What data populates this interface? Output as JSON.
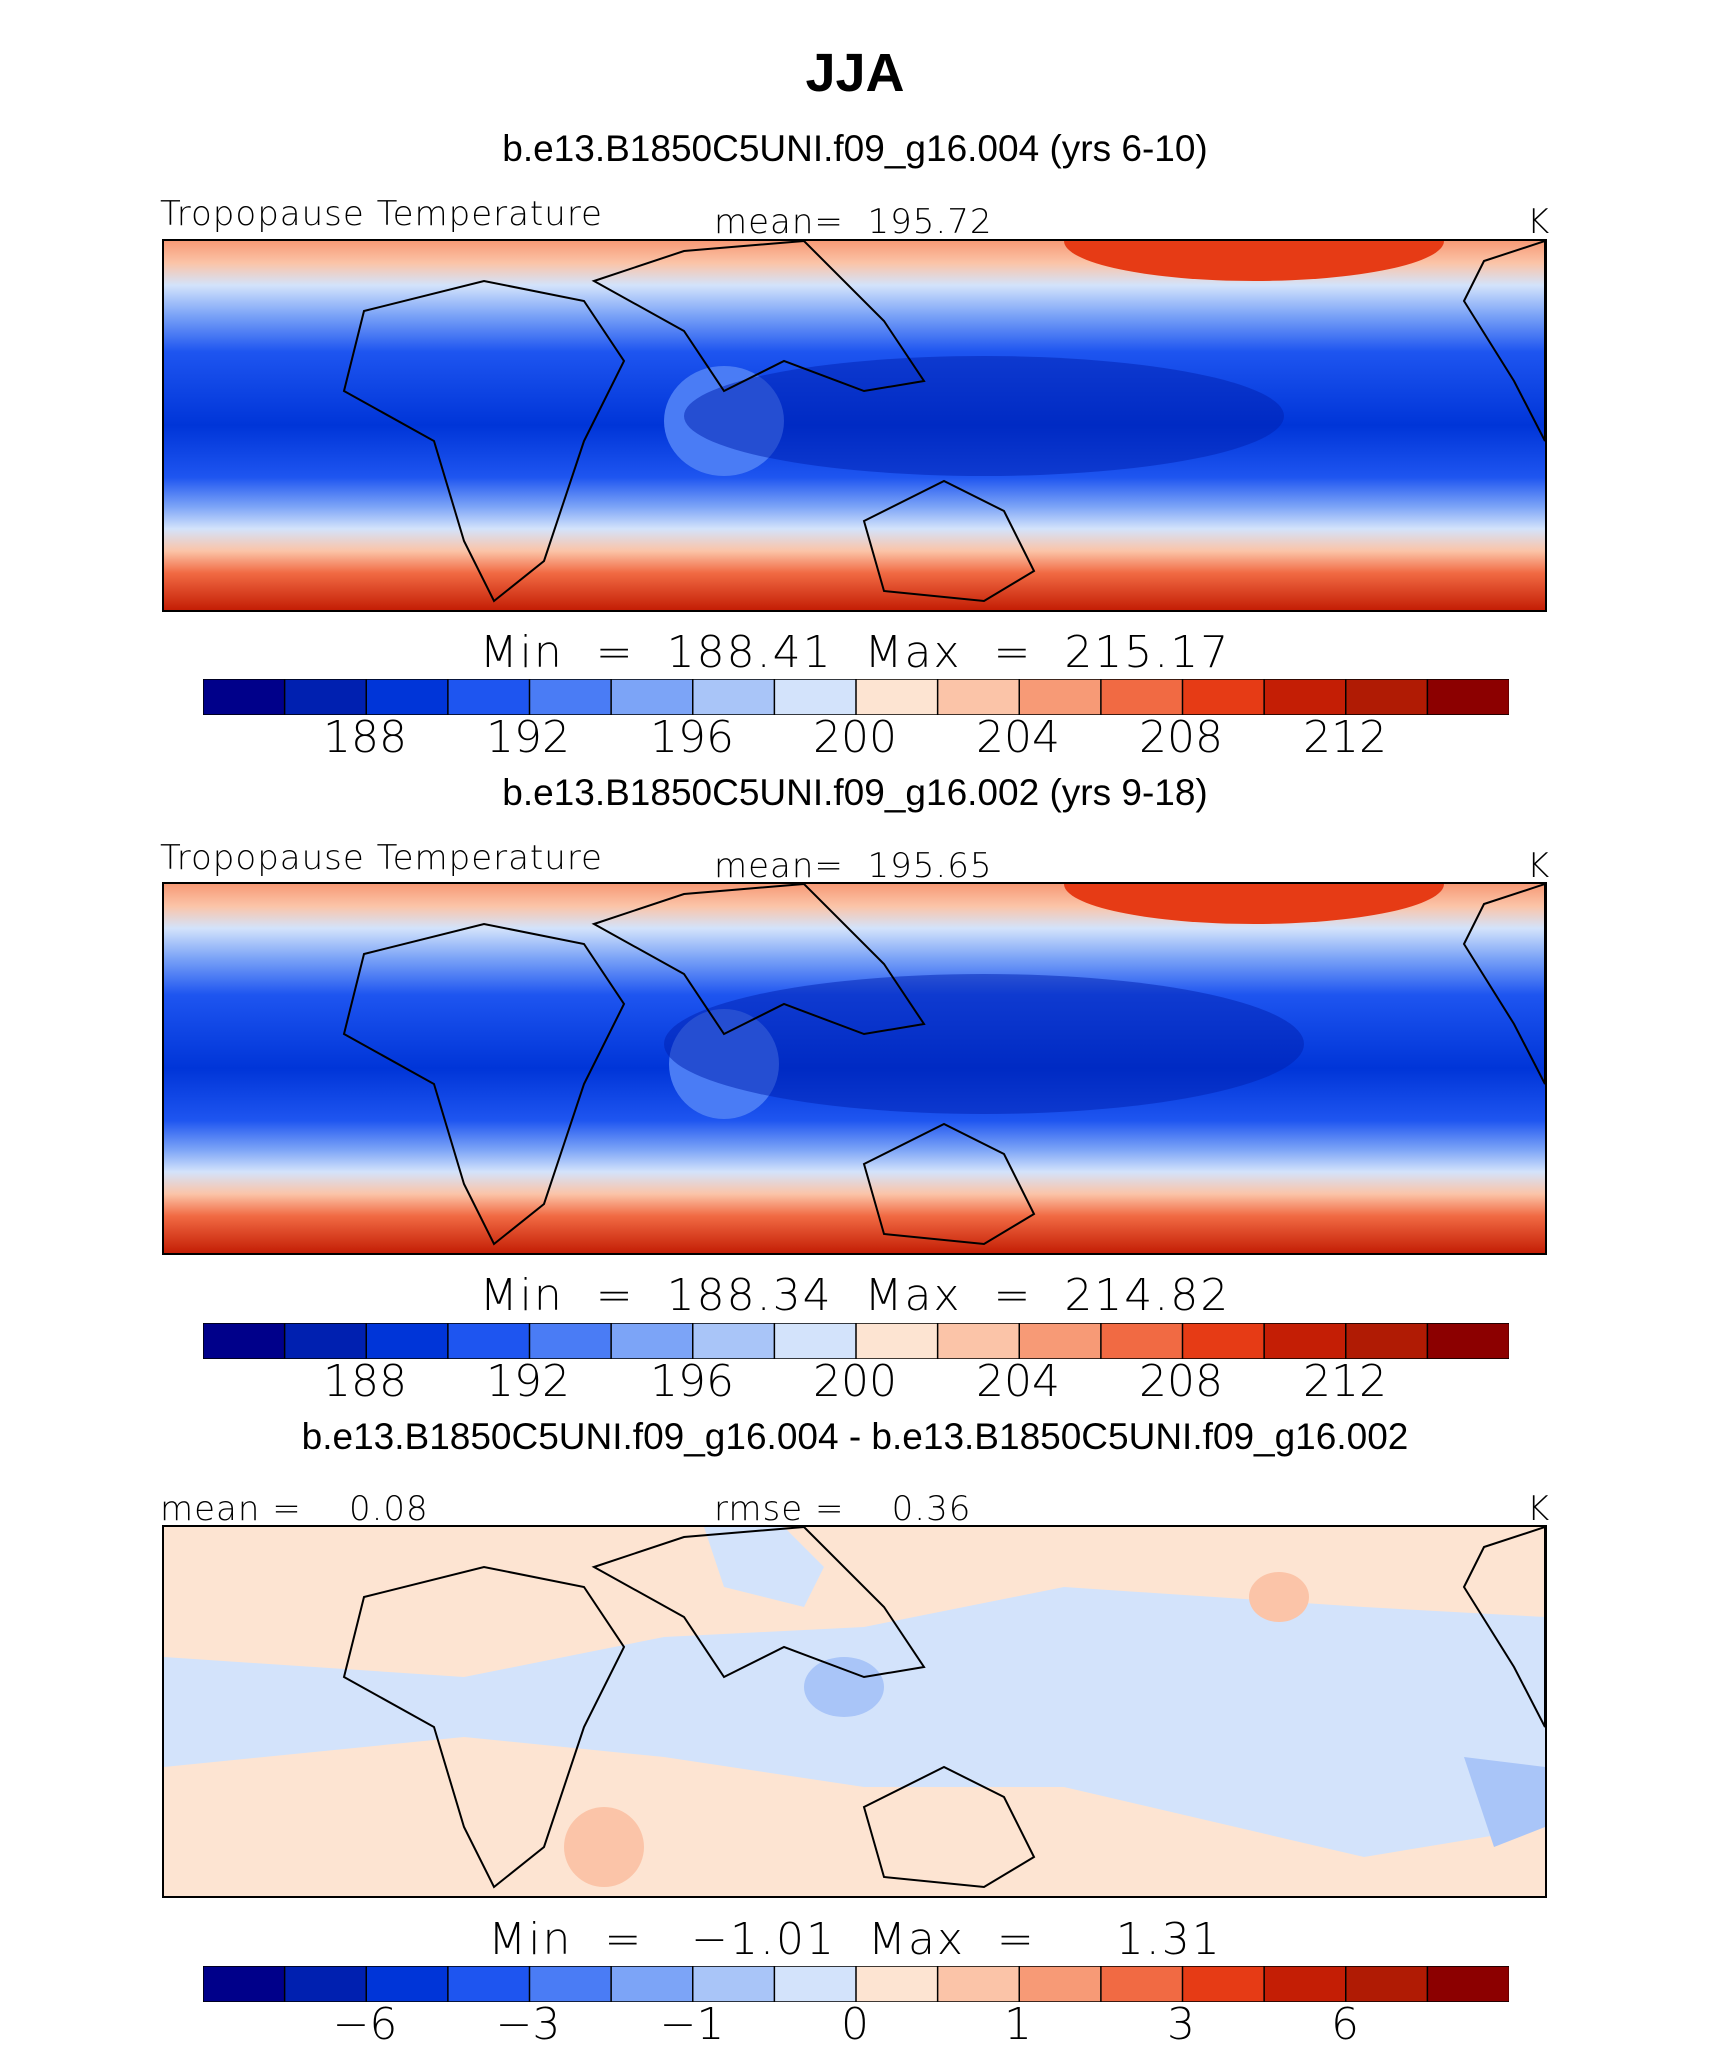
{
  "title": "JJA",
  "colors": [
    "#00008a",
    "#0020b0",
    "#0035d8",
    "#1e55f0",
    "#4a7cf5",
    "#7ca4f7",
    "#a9c5f8",
    "#d3e3fb",
    "#fde4d2",
    "#fbc4a8",
    "#f79a76",
    "#f16a43",
    "#e63b15",
    "#c41e05",
    "#b01b04",
    "#8c0000"
  ],
  "panels": [
    {
      "case_title": "b.e13.B1850C5UNI.f09_g16.004 (yrs 6-10)",
      "left_label": "Tropopause Temperature",
      "center_label": "mean=  195.72",
      "units": "K",
      "minmax": "Min  =  188.41  Max  =  215.17",
      "tick_labels": [
        "188",
        "192",
        "196",
        "200",
        "204",
        "208",
        "212"
      ]
    },
    {
      "case_title": "b.e13.B1850C5UNI.f09_g16.002 (yrs 9-18)",
      "left_label": "Tropopause Temperature",
      "center_label": "mean=  195.65",
      "units": "K",
      "minmax": "Min  =  188.34  Max  =  214.82",
      "tick_labels": [
        "188",
        "192",
        "196",
        "200",
        "204",
        "208",
        "212"
      ]
    },
    {
      "case_title": "b.e13.B1850C5UNI.f09_g16.004 - b.e13.B1850C5UNI.f09_g16.002",
      "left_label": "mean =    0.08",
      "center_label": "rmse =    0.36",
      "units": "K",
      "minmax": "Min  =   −1.01  Max  =     1.31",
      "tick_labels": [
        "−6",
        "−3",
        "−1",
        "0",
        "1",
        "3",
        "6"
      ]
    }
  ],
  "chart_data": [
    {
      "type": "heatmap",
      "title": "b.e13.B1850C5UNI.f09_g16.004 (yrs 6-10)",
      "variable": "Tropopause Temperature",
      "units": "K",
      "mean": 195.72,
      "min": 188.41,
      "max": 215.17,
      "colorbar_levels": [
        186,
        188,
        190,
        192,
        194,
        196,
        198,
        200,
        202,
        204,
        206,
        208,
        210,
        212,
        214
      ],
      "colorbar_ticks": [
        188,
        192,
        196,
        200,
        204,
        208,
        212
      ]
    },
    {
      "type": "heatmap",
      "title": "b.e13.B1850C5UNI.f09_g16.002 (yrs 9-18)",
      "variable": "Tropopause Temperature",
      "units": "K",
      "mean": 195.65,
      "min": 188.34,
      "max": 214.82,
      "colorbar_levels": [
        186,
        188,
        190,
        192,
        194,
        196,
        198,
        200,
        202,
        204,
        206,
        208,
        210,
        212,
        214
      ],
      "colorbar_ticks": [
        188,
        192,
        196,
        200,
        204,
        208,
        212
      ]
    },
    {
      "type": "heatmap",
      "title": "b.e13.B1850C5UNI.f09_g16.004 - b.e13.B1850C5UNI.f09_g16.002",
      "units": "K",
      "mean": 0.08,
      "rmse": 0.36,
      "min": -1.01,
      "max": 1.31,
      "colorbar_levels": [
        -8,
        -6,
        -4,
        -3,
        -2,
        -1,
        -0.5,
        0,
        0.5,
        1,
        2,
        3,
        4,
        6,
        8
      ],
      "colorbar_ticks": [
        -6,
        -3,
        -1,
        0,
        1,
        3,
        6
      ]
    }
  ]
}
